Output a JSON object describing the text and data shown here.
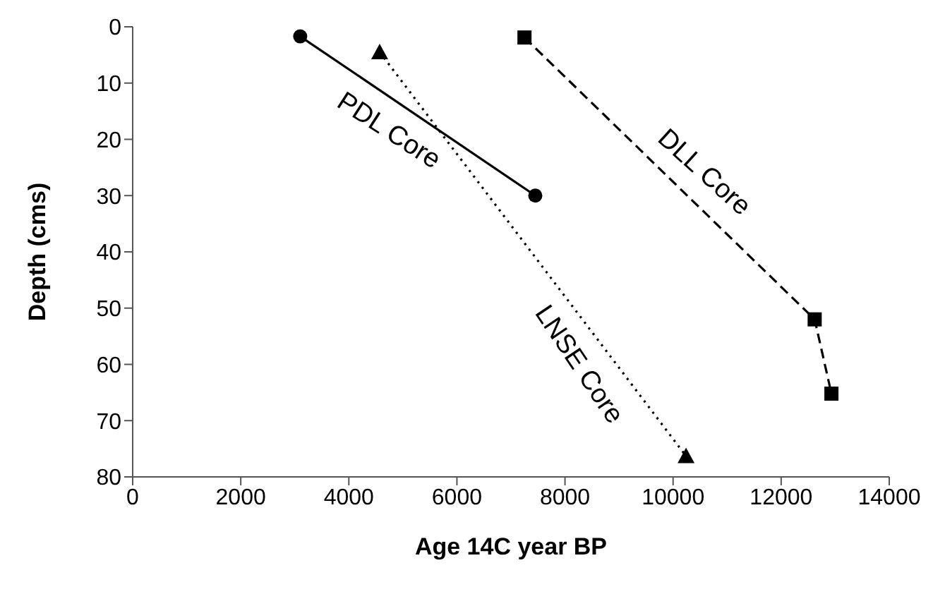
{
  "chart_data": {
    "type": "line",
    "xlabel": "Age 14C year BP",
    "ylabel": "Depth (cms)",
    "xlim": [
      0,
      14000
    ],
    "xticks": [
      0,
      2000,
      4000,
      6000,
      8000,
      10000,
      12000,
      14000
    ],
    "ylim": [
      80,
      0
    ],
    "yticks": [
      0,
      10,
      20,
      30,
      40,
      50,
      60,
      70,
      80
    ],
    "grid": false,
    "legend": false,
    "series": [
      {
        "name": "PDL Core",
        "color": "#000000",
        "marker": "circle",
        "line_style": "solid",
        "x": [
          3100,
          7450
        ],
        "values": [
          1.7,
          30
        ]
      },
      {
        "name": "LNSE Core",
        "color": "#000000",
        "marker": "triangle",
        "line_style": "dotted",
        "x": [
          4570,
          10240
        ],
        "values": [
          4.5,
          76.3
        ]
      },
      {
        "name": "DLL Core",
        "color": "#000000",
        "marker": "square",
        "line_style": "dashed",
        "x": [
          7250,
          12620,
          12930
        ],
        "values": [
          1.9,
          52,
          65.2
        ]
      }
    ]
  }
}
